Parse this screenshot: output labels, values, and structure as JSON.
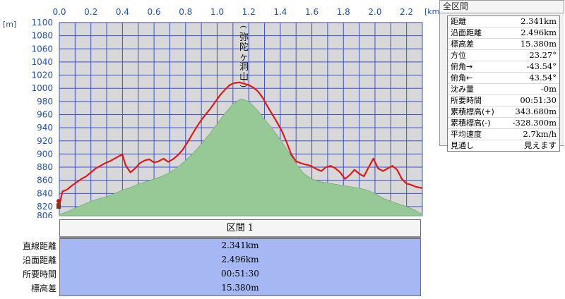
{
  "chart_data": {
    "type": "area",
    "x_unit": "[km]",
    "y_unit": "[m]",
    "xlim": [
      0.0,
      2.3
    ],
    "ylim": [
      806,
      1100
    ],
    "x_ticks": [
      "0.0",
      "0.2",
      "0.4",
      "0.6",
      "0.8",
      "1.0",
      "1.2",
      "1.4",
      "1.6",
      "1.8",
      "2.0",
      "2.2"
    ],
    "y_ticks": [
      "1100",
      "1080",
      "1060",
      "1040",
      "1020",
      "1000",
      "980",
      "960",
      "940",
      "920",
      "900",
      "880",
      "860",
      "840",
      "820",
      "806"
    ],
    "grid": true,
    "annotation": "弥陀ヶ洞山",
    "series": [
      {
        "name": "",
        "color": "#e01818",
        "x": [
          0.0,
          0.02,
          0.05,
          0.08,
          0.11,
          0.14,
          0.17,
          0.2,
          0.23,
          0.26,
          0.29,
          0.32,
          0.35,
          0.38,
          0.4,
          0.42,
          0.45,
          0.48,
          0.51,
          0.54,
          0.57,
          0.6,
          0.63,
          0.66,
          0.69,
          0.72,
          0.75,
          0.78,
          0.81,
          0.84,
          0.87,
          0.9,
          0.93,
          0.96,
          0.99,
          1.02,
          1.05,
          1.08,
          1.11,
          1.14,
          1.17,
          1.2,
          1.23,
          1.26,
          1.29,
          1.32,
          1.35,
          1.38,
          1.41,
          1.44,
          1.47,
          1.5,
          1.53,
          1.56,
          1.58,
          1.6,
          1.63,
          1.66,
          1.69,
          1.72,
          1.75,
          1.78,
          1.81,
          1.84,
          1.87,
          1.9,
          1.93,
          1.96,
          1.99,
          2.02,
          2.05,
          2.08,
          2.11,
          2.14,
          2.17,
          2.2,
          2.23,
          2.26,
          2.3
        ],
        "y": [
          822,
          843,
          846,
          852,
          857,
          862,
          866,
          872,
          878,
          882,
          886,
          889,
          893,
          897,
          899,
          883,
          872,
          878,
          886,
          890,
          892,
          887,
          889,
          893,
          888,
          892,
          898,
          906,
          917,
          929,
          941,
          952,
          961,
          970,
          980,
          990,
          998,
          1005,
          1008,
          1009,
          1007,
          1005,
          1001,
          995,
          985,
          972,
          960,
          948,
          935,
          918,
          899,
          889,
          886,
          884,
          883,
          881,
          877,
          874,
          880,
          882,
          878,
          872,
          862,
          868,
          876,
          870,
          866,
          880,
          893,
          878,
          874,
          878,
          882,
          876,
          862,
          855,
          853,
          850,
          848
        ]
      },
      {
        "name": "",
        "color": "#96c995",
        "x": [
          0.0,
          0.05,
          0.1,
          0.15,
          0.2,
          0.25,
          0.3,
          0.35,
          0.4,
          0.45,
          0.5,
          0.55,
          0.6,
          0.65,
          0.7,
          0.75,
          0.8,
          0.85,
          0.9,
          0.95,
          1.0,
          1.05,
          1.1,
          1.15,
          1.2,
          1.25,
          1.3,
          1.35,
          1.4,
          1.45,
          1.5,
          1.55,
          1.6,
          1.65,
          1.7,
          1.75,
          1.8,
          1.85,
          1.9,
          1.95,
          2.0,
          2.05,
          2.1,
          2.15,
          2.2,
          2.25,
          2.3
        ],
        "y": [
          808,
          812,
          818,
          823,
          828,
          832,
          835,
          840,
          845,
          849,
          854,
          858,
          862,
          866,
          872,
          880,
          890,
          902,
          915,
          930,
          946,
          962,
          976,
          984,
          980,
          968,
          953,
          938,
          922,
          904,
          885,
          870,
          862,
          858,
          856,
          854,
          852,
          850,
          848,
          845,
          840,
          833,
          828,
          824,
          820,
          815,
          808
        ]
      }
    ]
  },
  "stats_panel": {
    "title": "全区間",
    "rows": [
      {
        "label": "距離",
        "value": "2.341km"
      },
      {
        "label": "沿面距離",
        "value": "2.496km"
      },
      {
        "label": "標高差",
        "value": "15.380m"
      },
      {
        "label": "方位",
        "value": "23.27°"
      },
      {
        "label": "俯角→",
        "value": "-43.54°"
      },
      {
        "label": "俯角←",
        "value": "43.54°"
      },
      {
        "label": "沈み量",
        "value": "-0m"
      },
      {
        "label": "所要時間",
        "value": "00:51:30"
      },
      {
        "label": "累積標高(+)",
        "value": "343.680m"
      },
      {
        "label": "累積標高(-)",
        "value": "-328.300m"
      },
      {
        "label": "平均速度",
        "value": "2.7km/h"
      },
      {
        "label": "見通し",
        "value": "見えます"
      }
    ]
  },
  "section_table": {
    "header": "区間 1",
    "rows": [
      {
        "label": "直線距離",
        "value": "2.341km"
      },
      {
        "label": "沿面距離",
        "value": "2.496km"
      },
      {
        "label": "所要時間",
        "value": "00:51:30"
      },
      {
        "label": "標高差",
        "value": "15.380m"
      }
    ]
  }
}
